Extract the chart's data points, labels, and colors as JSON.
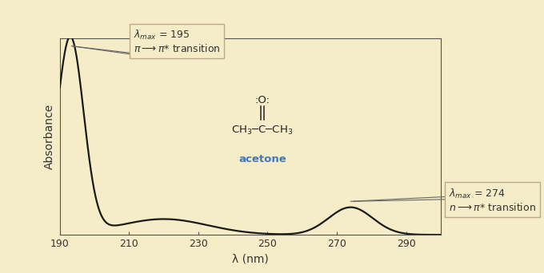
{
  "bg_color": "#f5ecc8",
  "curve_color": "#1a1a1a",
  "xlabel": "λ (nm)",
  "ylabel": "Absorbance",
  "xlim": [
    190,
    300
  ],
  "ylim": [
    0,
    1.0
  ],
  "xticks": [
    190,
    210,
    230,
    250,
    270,
    290
  ],
  "box_face_color": "#f5ecc8",
  "box_edge_color": "#bbaa88",
  "text_color": "#333333",
  "acetone_color": "#4477bb",
  "axis_color": "#555555",
  "label_fontsize": 10,
  "tick_fontsize": 9,
  "ann_fontsize": 9
}
